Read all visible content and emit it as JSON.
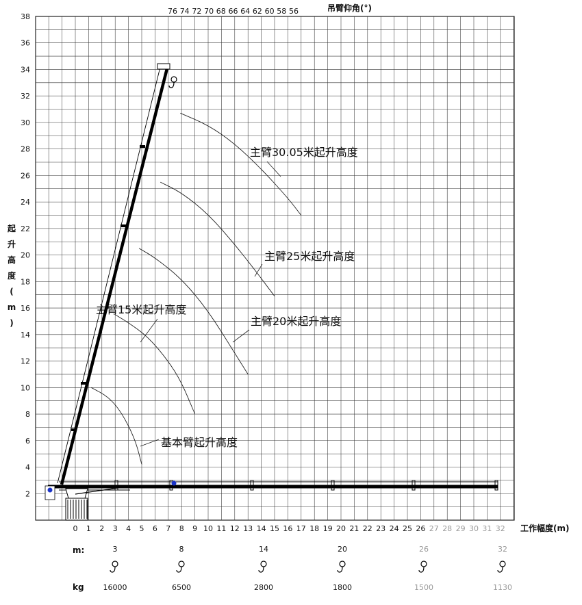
{
  "chart_data": {
    "type": "line",
    "ylabel": "起升高度(m)",
    "xlabel": "工作幅度(m)",
    "top_axis_label": "吊臂仰角(°)",
    "angle_ticks": [
      "76",
      "74",
      "72",
      "70",
      "68",
      "66",
      "64",
      "62",
      "60",
      "58",
      "56"
    ],
    "y_ticks": [
      "2",
      "4",
      "6",
      "8",
      "10",
      "12",
      "14",
      "16",
      "18",
      "20",
      "22",
      "24",
      "26",
      "28",
      "30",
      "32",
      "34",
      "36",
      "38"
    ],
    "x_ticks": [
      "0",
      "1",
      "2",
      "3",
      "4",
      "5",
      "6",
      "7",
      "8",
      "9",
      "10",
      "11",
      "12",
      "13",
      "14",
      "15",
      "16",
      "17",
      "18",
      "19",
      "20",
      "21",
      "22",
      "23",
      "24",
      "25",
      "26",
      "27",
      "28",
      "29",
      "30",
      "31",
      "32"
    ],
    "xlim": [
      -3,
      33
    ],
    "ylim": [
      0,
      38
    ],
    "series": [
      {
        "name": "主臂30.05米起升高度",
        "x": [
          7.9,
          10,
          12,
          14,
          16,
          17
        ],
        "y": [
          30.7,
          29.8,
          28.4,
          26.5,
          24.3,
          23.0
        ]
      },
      {
        "name": "主臂25米起升高度",
        "x": [
          6.4,
          8,
          10,
          12,
          13.5,
          15
        ],
        "y": [
          25.5,
          24.7,
          23.1,
          20.8,
          18.9,
          16.9
        ]
      },
      {
        "name": "主臂20米起升高度",
        "x": [
          4.8,
          6,
          8,
          10,
          12,
          13
        ],
        "y": [
          20.5,
          19.8,
          18.2,
          15.8,
          12.6,
          11.0
        ]
      },
      {
        "name": "主臂15米起升高度",
        "x": [
          3.0,
          4,
          5.5,
          7,
          8,
          9
        ],
        "y": [
          15.5,
          14.9,
          13.8,
          12.0,
          10.4,
          8.0
        ]
      },
      {
        "name": "基本臂起升高度",
        "x": [
          1.2,
          2.5,
          3.5,
          4.5,
          5.0
        ],
        "y": [
          10.0,
          9.3,
          8.1,
          6.1,
          4.2
        ]
      }
    ],
    "load_table": {
      "row1_label": "m:",
      "row2_label": "kg",
      "radius": [
        "3",
        "8",
        "14",
        "20",
        "26",
        "32"
      ],
      "load": [
        "16000",
        "6500",
        "2800",
        "1800",
        "1500",
        "1130"
      ]
    }
  }
}
